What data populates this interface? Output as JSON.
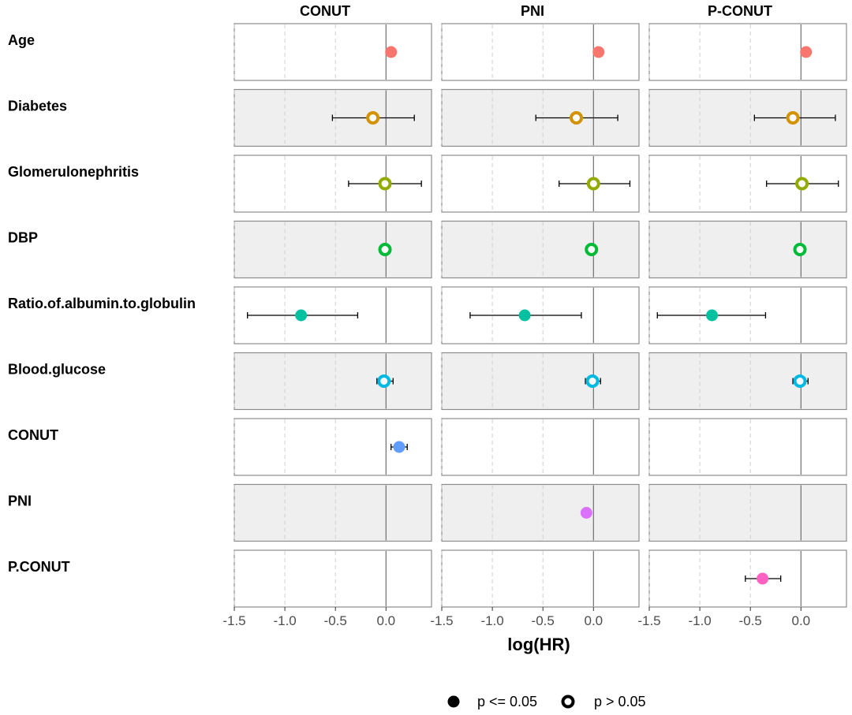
{
  "chart_data": {
    "type": "scatter",
    "subtype": "faceted forest plot",
    "xlabel": "log(HR)",
    "xlim": [
      -1.5,
      0.45
    ],
    "xticks": [
      -1.5,
      -1.0,
      -0.5,
      0.0
    ],
    "tick_labels": [
      "-1.5",
      "-1.0",
      "-0.5",
      "0.0"
    ],
    "reference_line": 0,
    "grid": "vertical dashed",
    "columns": [
      "CONUT",
      "PNI",
      "P-CONUT"
    ],
    "rows": [
      {
        "label": "Age",
        "color": "#F8766D",
        "shaded": false
      },
      {
        "label": "Diabetes",
        "color": "#D39200",
        "shaded": true
      },
      {
        "label": "Glomerulonephritis",
        "color": "#93AA00",
        "shaded": false
      },
      {
        "label": "DBP",
        "color": "#00BA38",
        "shaded": true
      },
      {
        "label": "Ratio.of.albumin.to.globulin",
        "color": "#00C19F",
        "shaded": false
      },
      {
        "label": "Blood.glucose",
        "color": "#00B9E3",
        "shaded": true
      },
      {
        "label": "CONUT",
        "color": "#619CFF",
        "shaded": false
      },
      {
        "label": "PNI",
        "color": "#DB72FB",
        "shaded": true
      },
      {
        "label": "P.CONUT",
        "color": "#FF61C3",
        "shaded": false
      }
    ],
    "points": [
      {
        "row": "Age",
        "column": "CONUT",
        "estimate": 0.05,
        "lower": null,
        "upper": null,
        "significant": true
      },
      {
        "row": "Age",
        "column": "PNI",
        "estimate": 0.05,
        "lower": null,
        "upper": null,
        "significant": true
      },
      {
        "row": "Age",
        "column": "P-CONUT",
        "estimate": 0.05,
        "lower": null,
        "upper": null,
        "significant": true
      },
      {
        "row": "Diabetes",
        "column": "CONUT",
        "estimate": -0.13,
        "lower": -0.53,
        "upper": 0.28,
        "significant": false
      },
      {
        "row": "Diabetes",
        "column": "PNI",
        "estimate": -0.17,
        "lower": -0.57,
        "upper": 0.24,
        "significant": false
      },
      {
        "row": "Diabetes",
        "column": "P-CONUT",
        "estimate": -0.08,
        "lower": -0.46,
        "upper": 0.34,
        "significant": false
      },
      {
        "row": "Glomerulonephritis",
        "column": "CONUT",
        "estimate": -0.01,
        "lower": -0.37,
        "upper": 0.35,
        "significant": false
      },
      {
        "row": "Glomerulonephritis",
        "column": "PNI",
        "estimate": 0.0,
        "lower": -0.34,
        "upper": 0.36,
        "significant": false
      },
      {
        "row": "Glomerulonephritis",
        "column": "P-CONUT",
        "estimate": 0.01,
        "lower": -0.34,
        "upper": 0.37,
        "significant": false
      },
      {
        "row": "DBP",
        "column": "CONUT",
        "estimate": -0.01,
        "lower": null,
        "upper": null,
        "significant": false
      },
      {
        "row": "DBP",
        "column": "PNI",
        "estimate": -0.02,
        "lower": null,
        "upper": null,
        "significant": false
      },
      {
        "row": "DBP",
        "column": "P-CONUT",
        "estimate": -0.01,
        "lower": null,
        "upper": null,
        "significant": false
      },
      {
        "row": "Ratio.of.albumin.to.globulin",
        "column": "CONUT",
        "estimate": -0.84,
        "lower": -1.37,
        "upper": -0.28,
        "significant": true
      },
      {
        "row": "Ratio.of.albumin.to.globulin",
        "column": "PNI",
        "estimate": -0.68,
        "lower": -1.22,
        "upper": -0.12,
        "significant": true
      },
      {
        "row": "Ratio.of.albumin.to.globulin",
        "column": "P-CONUT",
        "estimate": -0.88,
        "lower": -1.42,
        "upper": -0.35,
        "significant": true
      },
      {
        "row": "Blood.glucose",
        "column": "CONUT",
        "estimate": -0.02,
        "lower": -0.09,
        "upper": 0.07,
        "significant": false
      },
      {
        "row": "Blood.glucose",
        "column": "PNI",
        "estimate": -0.01,
        "lower": -0.08,
        "upper": 0.07,
        "significant": false
      },
      {
        "row": "Blood.glucose",
        "column": "P-CONUT",
        "estimate": -0.01,
        "lower": -0.08,
        "upper": 0.07,
        "significant": false
      },
      {
        "row": "CONUT",
        "column": "CONUT",
        "estimate": 0.13,
        "lower": 0.05,
        "upper": 0.21,
        "significant": true
      },
      {
        "row": "PNI",
        "column": "PNI",
        "estimate": -0.07,
        "lower": null,
        "upper": null,
        "significant": true
      },
      {
        "row": "P.CONUT",
        "column": "P-CONUT",
        "estimate": -0.38,
        "lower": -0.55,
        "upper": -0.2,
        "significant": true
      }
    ],
    "legend": {
      "position": "bottom",
      "items": [
        {
          "label": "p <= 0.05",
          "marker": "filled"
        },
        {
          "label": "p > 0.05",
          "marker": "hollow"
        }
      ]
    }
  }
}
